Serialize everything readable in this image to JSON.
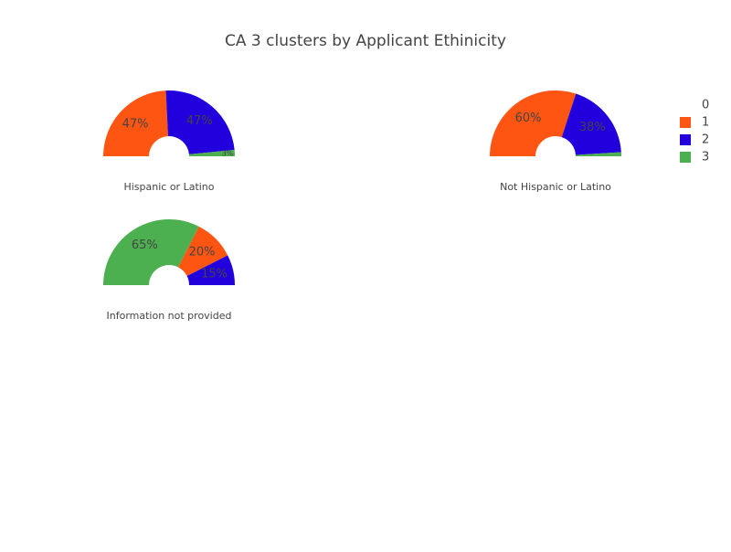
{
  "title": "CA 3 clusters by Applicant Ethinicity",
  "legend": {
    "names": [
      "0",
      "1",
      "2",
      "3"
    ],
    "colors": [
      "#ffffff",
      "#ff5513",
      "#2200dd",
      "#4caf50"
    ]
  },
  "chart_data": [
    {
      "type": "pie",
      "title": "Hispanic or Latino",
      "labels": [
        "1",
        "2",
        "3"
      ],
      "values": [
        47,
        47,
        3
      ],
      "value_labels": [
        "47%",
        "47%",
        "3%"
      ]
    },
    {
      "type": "pie",
      "title": "Not Hispanic or Latino",
      "labels": [
        "1",
        "2",
        "3"
      ],
      "values": [
        60,
        38,
        2
      ],
      "value_labels": [
        "60%",
        "38%",
        null
      ]
    },
    {
      "type": "pie",
      "title": "Information not provided",
      "labels": [
        "3",
        "1",
        "2"
      ],
      "values": [
        65,
        20,
        15
      ],
      "value_labels": [
        "65%",
        "20%",
        "15%"
      ]
    }
  ]
}
